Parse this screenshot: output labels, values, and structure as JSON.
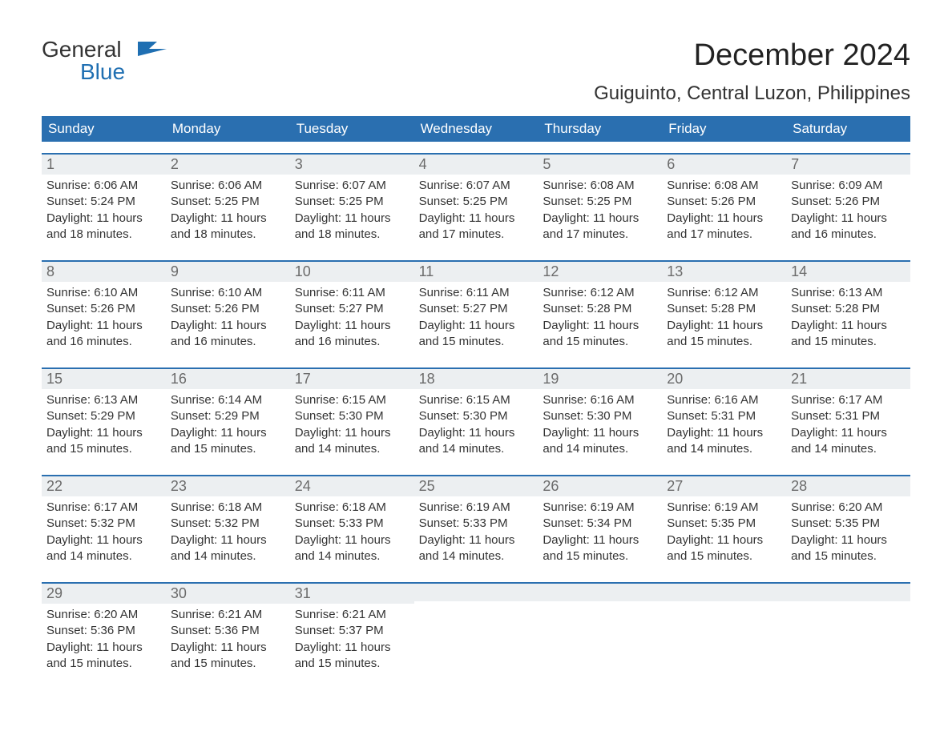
{
  "brand": {
    "general": "General",
    "blue": "Blue",
    "flag_color": "#1f6fb2"
  },
  "title": "December 2024",
  "location": "Guiguinto, Central Luzon, Philippines",
  "colors": {
    "header_bg": "#2a6fb0",
    "header_text": "#ffffff",
    "daynum_bg": "#eceff1",
    "daynum_text": "#6b6b6b",
    "body_text": "#333333",
    "week_border": "#2a6fb0",
    "background": "#ffffff"
  },
  "typography": {
    "month_title_fontsize": 38,
    "location_fontsize": 24,
    "weekday_fontsize": 17,
    "daynum_fontsize": 18,
    "body_fontsize": 15
  },
  "weekdays": [
    "Sunday",
    "Monday",
    "Tuesday",
    "Wednesday",
    "Thursday",
    "Friday",
    "Saturday"
  ],
  "weeks": [
    [
      {
        "num": "1",
        "sunrise": "Sunrise: 6:06 AM",
        "sunset": "Sunset: 5:24 PM",
        "day1": "Daylight: 11 hours",
        "day2": "and 18 minutes."
      },
      {
        "num": "2",
        "sunrise": "Sunrise: 6:06 AM",
        "sunset": "Sunset: 5:25 PM",
        "day1": "Daylight: 11 hours",
        "day2": "and 18 minutes."
      },
      {
        "num": "3",
        "sunrise": "Sunrise: 6:07 AM",
        "sunset": "Sunset: 5:25 PM",
        "day1": "Daylight: 11 hours",
        "day2": "and 18 minutes."
      },
      {
        "num": "4",
        "sunrise": "Sunrise: 6:07 AM",
        "sunset": "Sunset: 5:25 PM",
        "day1": "Daylight: 11 hours",
        "day2": "and 17 minutes."
      },
      {
        "num": "5",
        "sunrise": "Sunrise: 6:08 AM",
        "sunset": "Sunset: 5:25 PM",
        "day1": "Daylight: 11 hours",
        "day2": "and 17 minutes."
      },
      {
        "num": "6",
        "sunrise": "Sunrise: 6:08 AM",
        "sunset": "Sunset: 5:26 PM",
        "day1": "Daylight: 11 hours",
        "day2": "and 17 minutes."
      },
      {
        "num": "7",
        "sunrise": "Sunrise: 6:09 AM",
        "sunset": "Sunset: 5:26 PM",
        "day1": "Daylight: 11 hours",
        "day2": "and 16 minutes."
      }
    ],
    [
      {
        "num": "8",
        "sunrise": "Sunrise: 6:10 AM",
        "sunset": "Sunset: 5:26 PM",
        "day1": "Daylight: 11 hours",
        "day2": "and 16 minutes."
      },
      {
        "num": "9",
        "sunrise": "Sunrise: 6:10 AM",
        "sunset": "Sunset: 5:26 PM",
        "day1": "Daylight: 11 hours",
        "day2": "and 16 minutes."
      },
      {
        "num": "10",
        "sunrise": "Sunrise: 6:11 AM",
        "sunset": "Sunset: 5:27 PM",
        "day1": "Daylight: 11 hours",
        "day2": "and 16 minutes."
      },
      {
        "num": "11",
        "sunrise": "Sunrise: 6:11 AM",
        "sunset": "Sunset: 5:27 PM",
        "day1": "Daylight: 11 hours",
        "day2": "and 15 minutes."
      },
      {
        "num": "12",
        "sunrise": "Sunrise: 6:12 AM",
        "sunset": "Sunset: 5:28 PM",
        "day1": "Daylight: 11 hours",
        "day2": "and 15 minutes."
      },
      {
        "num": "13",
        "sunrise": "Sunrise: 6:12 AM",
        "sunset": "Sunset: 5:28 PM",
        "day1": "Daylight: 11 hours",
        "day2": "and 15 minutes."
      },
      {
        "num": "14",
        "sunrise": "Sunrise: 6:13 AM",
        "sunset": "Sunset: 5:28 PM",
        "day1": "Daylight: 11 hours",
        "day2": "and 15 minutes."
      }
    ],
    [
      {
        "num": "15",
        "sunrise": "Sunrise: 6:13 AM",
        "sunset": "Sunset: 5:29 PM",
        "day1": "Daylight: 11 hours",
        "day2": "and 15 minutes."
      },
      {
        "num": "16",
        "sunrise": "Sunrise: 6:14 AM",
        "sunset": "Sunset: 5:29 PM",
        "day1": "Daylight: 11 hours",
        "day2": "and 15 minutes."
      },
      {
        "num": "17",
        "sunrise": "Sunrise: 6:15 AM",
        "sunset": "Sunset: 5:30 PM",
        "day1": "Daylight: 11 hours",
        "day2": "and 14 minutes."
      },
      {
        "num": "18",
        "sunrise": "Sunrise: 6:15 AM",
        "sunset": "Sunset: 5:30 PM",
        "day1": "Daylight: 11 hours",
        "day2": "and 14 minutes."
      },
      {
        "num": "19",
        "sunrise": "Sunrise: 6:16 AM",
        "sunset": "Sunset: 5:30 PM",
        "day1": "Daylight: 11 hours",
        "day2": "and 14 minutes."
      },
      {
        "num": "20",
        "sunrise": "Sunrise: 6:16 AM",
        "sunset": "Sunset: 5:31 PM",
        "day1": "Daylight: 11 hours",
        "day2": "and 14 minutes."
      },
      {
        "num": "21",
        "sunrise": "Sunrise: 6:17 AM",
        "sunset": "Sunset: 5:31 PM",
        "day1": "Daylight: 11 hours",
        "day2": "and 14 minutes."
      }
    ],
    [
      {
        "num": "22",
        "sunrise": "Sunrise: 6:17 AM",
        "sunset": "Sunset: 5:32 PM",
        "day1": "Daylight: 11 hours",
        "day2": "and 14 minutes."
      },
      {
        "num": "23",
        "sunrise": "Sunrise: 6:18 AM",
        "sunset": "Sunset: 5:32 PM",
        "day1": "Daylight: 11 hours",
        "day2": "and 14 minutes."
      },
      {
        "num": "24",
        "sunrise": "Sunrise: 6:18 AM",
        "sunset": "Sunset: 5:33 PM",
        "day1": "Daylight: 11 hours",
        "day2": "and 14 minutes."
      },
      {
        "num": "25",
        "sunrise": "Sunrise: 6:19 AM",
        "sunset": "Sunset: 5:33 PM",
        "day1": "Daylight: 11 hours",
        "day2": "and 14 minutes."
      },
      {
        "num": "26",
        "sunrise": "Sunrise: 6:19 AM",
        "sunset": "Sunset: 5:34 PM",
        "day1": "Daylight: 11 hours",
        "day2": "and 15 minutes."
      },
      {
        "num": "27",
        "sunrise": "Sunrise: 6:19 AM",
        "sunset": "Sunset: 5:35 PM",
        "day1": "Daylight: 11 hours",
        "day2": "and 15 minutes."
      },
      {
        "num": "28",
        "sunrise": "Sunrise: 6:20 AM",
        "sunset": "Sunset: 5:35 PM",
        "day1": "Daylight: 11 hours",
        "day2": "and 15 minutes."
      }
    ],
    [
      {
        "num": "29",
        "sunrise": "Sunrise: 6:20 AM",
        "sunset": "Sunset: 5:36 PM",
        "day1": "Daylight: 11 hours",
        "day2": "and 15 minutes."
      },
      {
        "num": "30",
        "sunrise": "Sunrise: 6:21 AM",
        "sunset": "Sunset: 5:36 PM",
        "day1": "Daylight: 11 hours",
        "day2": "and 15 minutes."
      },
      {
        "num": "31",
        "sunrise": "Sunrise: 6:21 AM",
        "sunset": "Sunset: 5:37 PM",
        "day1": "Daylight: 11 hours",
        "day2": "and 15 minutes."
      },
      null,
      null,
      null,
      null
    ]
  ]
}
